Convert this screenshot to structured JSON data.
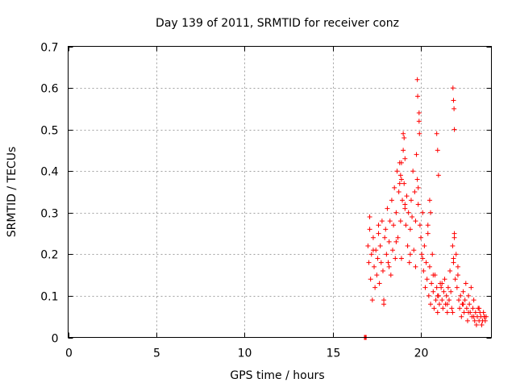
{
  "chart_data": {
    "type": "scatter",
    "title": "Day 139 of 2011, SRMTID for receiver conz",
    "xlabel": "GPS time / hours",
    "ylabel": "SRMTID / TECUs",
    "xlim": [
      0,
      24
    ],
    "ylim": [
      0,
      0.7
    ],
    "xticks": [
      0,
      5,
      10,
      15,
      20
    ],
    "yticks": [
      0,
      0.1,
      0.2,
      0.3,
      0.4,
      0.5,
      0.6,
      0.7
    ],
    "xtick_labels": [
      "0",
      "5",
      "10",
      "15",
      "20"
    ],
    "ytick_labels": [
      "0",
      "0.1",
      "0.2",
      "0.3",
      "0.4",
      "0.5",
      "0.6",
      "0.7"
    ],
    "grid": true,
    "marker": "plus",
    "color": "#ff0000",
    "series": [
      {
        "name": "SRMTID",
        "x": [
          16.8,
          16.82,
          16.84,
          16.86,
          16.88,
          16.9,
          17.0,
          17.05,
          17.1,
          17.15,
          17.2,
          17.25,
          17.3,
          17.35,
          17.4,
          17.45,
          17.5,
          17.55,
          17.6,
          17.65,
          17.7,
          17.75,
          17.8,
          17.85,
          17.9,
          17.95,
          18.0,
          18.05,
          18.1,
          18.15,
          18.2,
          18.25,
          18.3,
          18.35,
          18.4,
          18.45,
          18.5,
          18.55,
          18.6,
          18.65,
          18.7,
          18.75,
          18.8,
          18.85,
          18.9,
          18.95,
          19.0,
          19.05,
          19.1,
          19.15,
          19.2,
          19.25,
          19.3,
          19.35,
          19.4,
          19.45,
          19.5,
          19.55,
          19.6,
          19.65,
          19.7,
          19.75,
          19.8,
          19.85,
          19.9,
          19.95,
          20.0,
          20.05,
          20.1,
          20.15,
          20.2,
          20.25,
          20.3,
          20.35,
          20.4,
          20.45,
          20.5,
          20.55,
          20.6,
          20.65,
          20.7,
          20.75,
          20.8,
          20.85,
          20.9,
          20.95,
          21.0,
          21.05,
          21.1,
          21.15,
          21.2,
          21.25,
          21.3,
          21.35,
          21.4,
          21.45,
          21.5,
          21.55,
          21.6,
          21.65,
          21.7,
          21.75,
          21.8,
          21.85,
          21.9,
          21.95,
          22.0,
          22.05,
          22.1,
          22.15,
          22.2,
          22.25,
          22.3,
          22.35,
          22.4,
          22.45,
          22.5,
          22.55,
          22.6,
          22.65,
          22.7,
          22.75,
          22.8,
          22.85,
          22.9,
          22.95,
          23.0,
          23.05,
          23.1,
          23.15,
          23.2,
          23.25,
          23.3,
          23.35,
          23.4,
          23.45,
          23.5,
          23.55,
          23.6,
          23.65,
          23.7,
          17.1,
          17.3,
          17.6,
          17.9,
          18.2,
          18.6,
          18.9,
          19.1,
          19.4,
          19.7,
          19.85,
          20.1,
          20.4,
          20.7,
          20.95,
          21.2,
          21.5,
          21.8,
          21.85,
          21.9,
          22.1,
          22.4,
          22.7,
          23.0,
          23.3,
          23.6,
          19.8,
          19.82,
          19.9,
          19.92,
          21.82,
          21.85,
          21.88,
          21.9,
          20.9,
          20.95,
          21.0,
          19.0,
          19.05,
          19.1,
          18.9,
          18.85,
          18.8,
          20.5,
          20.55
        ],
        "y": [
          0.0,
          0.0,
          0.0,
          0.0,
          0.0,
          0.0,
          0.22,
          0.18,
          0.26,
          0.14,
          0.2,
          0.09,
          0.24,
          0.17,
          0.12,
          0.21,
          0.15,
          0.19,
          0.25,
          0.13,
          0.22,
          0.18,
          0.28,
          0.16,
          0.09,
          0.24,
          0.26,
          0.2,
          0.31,
          0.18,
          0.23,
          0.28,
          0.15,
          0.33,
          0.21,
          0.27,
          0.36,
          0.19,
          0.3,
          0.4,
          0.24,
          0.35,
          0.42,
          0.28,
          0.38,
          0.33,
          0.45,
          0.37,
          0.31,
          0.27,
          0.34,
          0.22,
          0.3,
          0.18,
          0.26,
          0.33,
          0.29,
          0.4,
          0.21,
          0.35,
          0.17,
          0.44,
          0.38,
          0.32,
          0.52,
          0.27,
          0.24,
          0.2,
          0.3,
          0.16,
          0.22,
          0.12,
          0.18,
          0.14,
          0.25,
          0.1,
          0.17,
          0.08,
          0.13,
          0.2,
          0.11,
          0.07,
          0.15,
          0.09,
          0.12,
          0.06,
          0.1,
          0.08,
          0.13,
          0.12,
          0.09,
          0.07,
          0.11,
          0.14,
          0.08,
          0.1,
          0.06,
          0.12,
          0.09,
          0.16,
          0.11,
          0.07,
          0.22,
          0.18,
          0.25,
          0.14,
          0.2,
          0.12,
          0.17,
          0.09,
          0.07,
          0.1,
          0.05,
          0.08,
          0.11,
          0.06,
          0.09,
          0.13,
          0.07,
          0.04,
          0.1,
          0.08,
          0.06,
          0.12,
          0.05,
          0.07,
          0.05,
          0.04,
          0.06,
          0.03,
          0.05,
          0.07,
          0.04,
          0.06,
          0.05,
          0.03,
          0.04,
          0.06,
          0.05,
          0.04,
          0.05,
          0.29,
          0.21,
          0.27,
          0.08,
          0.17,
          0.23,
          0.19,
          0.32,
          0.2,
          0.28,
          0.36,
          0.19,
          0.27,
          0.15,
          0.1,
          0.13,
          0.08,
          0.06,
          0.19,
          0.24,
          0.15,
          0.08,
          0.06,
          0.09,
          0.07,
          0.05,
          0.62,
          0.58,
          0.54,
          0.49,
          0.6,
          0.57,
          0.55,
          0.5,
          0.49,
          0.45,
          0.39,
          0.49,
          0.48,
          0.43,
          0.42,
          0.39,
          0.37,
          0.33,
          0.3
        ]
      }
    ]
  }
}
